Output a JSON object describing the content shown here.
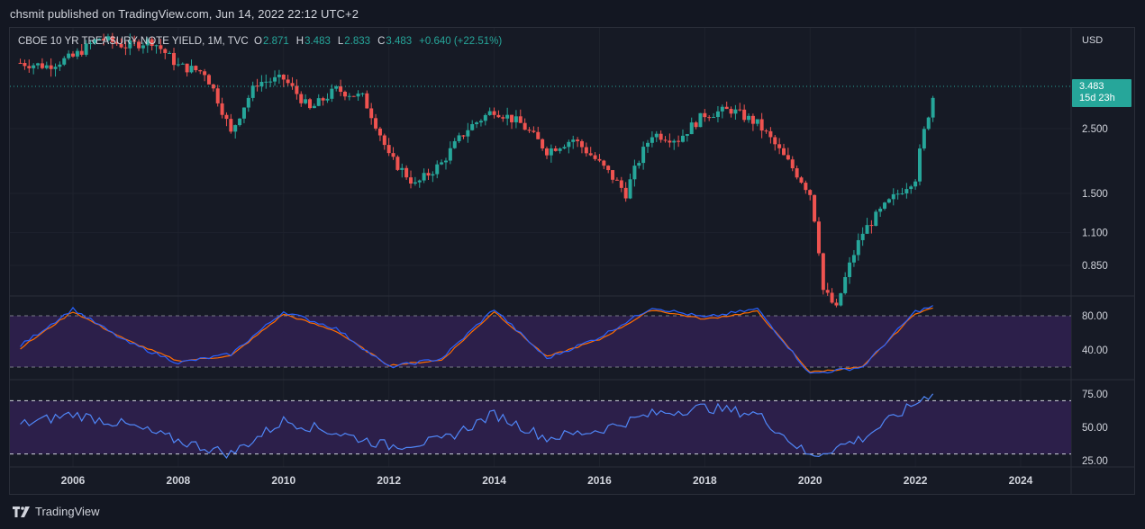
{
  "header": {
    "published_by": "chsmit published on TradingView.com, Jun 14, 2022 22:12 UTC+2"
  },
  "legend": {
    "symbol": "CBOE 10 YR TREASURY NOTE YIELD, 1M, TVC",
    "open_label": "O",
    "open": "2.871",
    "high_label": "H",
    "high": "3.483",
    "low_label": "L",
    "low": "2.833",
    "close_label": "C",
    "close": "3.483",
    "change": "+0.640 (+22.51%)"
  },
  "price_axis": {
    "currency": "USD",
    "labels": [
      "2.500",
      "1.500",
      "1.100",
      "0.850"
    ],
    "last_price": "3.483",
    "countdown": "15d 23h"
  },
  "stoch_axis": {
    "labels": [
      "80.00",
      "40.00"
    ]
  },
  "rsi_axis": {
    "labels": [
      "75.00",
      "50.00",
      "25.00"
    ]
  },
  "time_axis": {
    "labels": [
      "2006",
      "2008",
      "2010",
      "2012",
      "2014",
      "2016",
      "2018",
      "2020",
      "2022",
      "2024"
    ]
  },
  "footer": {
    "brand": "TradingView"
  },
  "colors": {
    "background": "#131722",
    "pane": "#161a25",
    "up": "#26a69a",
    "down": "#ef5350",
    "band_fill": "#2c1f4a",
    "blue_line": "#2962ff",
    "orange_line": "#ff6d00"
  },
  "chart_data": {
    "type": "candlestick",
    "price_series": {
      "name": "CBOE 10 YR TREASURY NOTE YIELD",
      "scale": "log",
      "x": [
        "2005",
        "2005.5",
        "2006",
        "2006.5",
        "2007",
        "2007.5",
        "2008",
        "2008.5",
        "2009",
        "2009.5",
        "2010",
        "2010.5",
        "2011",
        "2011.5",
        "2012",
        "2012.5",
        "2013",
        "2013.5",
        "2014",
        "2014.5",
        "2015",
        "2015.5",
        "2016",
        "2016.5",
        "2017",
        "2017.5",
        "2018",
        "2018.5",
        "2019",
        "2019.5",
        "2020",
        "2020.25",
        "2020.5",
        "2021",
        "2021.5",
        "2022",
        "2022.4"
      ],
      "y": [
        4.2,
        4.1,
        4.4,
        5.1,
        4.8,
        5.0,
        4.1,
        3.9,
        2.4,
        3.6,
        3.7,
        2.9,
        3.4,
        3.2,
        2.0,
        1.6,
        1.9,
        2.5,
        2.9,
        2.6,
        2.1,
        2.3,
        1.9,
        1.5,
        2.4,
        2.3,
        2.8,
        2.9,
        2.6,
        2.0,
        1.5,
        0.7,
        0.6,
        1.1,
        1.4,
        1.7,
        3.483
      ]
    },
    "stochastic": {
      "bands": [
        20,
        80
      ],
      "x": [
        "2005",
        "2006",
        "2007",
        "2008",
        "2009",
        "2010",
        "2011",
        "2012",
        "2013",
        "2014",
        "2015",
        "2016",
        "2017",
        "2018",
        "2019",
        "2020",
        "2021",
        "2022",
        "2022.4"
      ],
      "k": [
        45,
        88,
        50,
        25,
        35,
        85,
        65,
        20,
        30,
        88,
        30,
        55,
        90,
        78,
        88,
        12,
        20,
        85,
        92
      ],
      "d": [
        42,
        85,
        52,
        27,
        33,
        82,
        62,
        22,
        28,
        85,
        32,
        52,
        87,
        76,
        85,
        14,
        20,
        83,
        90
      ]
    },
    "rsi": {
      "bands": [
        30,
        70
      ],
      "x": [
        "2005",
        "2006",
        "2007",
        "2008",
        "2009",
        "2010",
        "2011",
        "2012",
        "2013",
        "2014",
        "2015",
        "2016",
        "2017",
        "2018",
        "2019",
        "2020",
        "2021",
        "2022",
        "2022.4"
      ],
      "values": [
        52,
        60,
        52,
        40,
        30,
        55,
        46,
        36,
        40,
        60,
        42,
        48,
        60,
        65,
        60,
        28,
        42,
        68,
        78
      ]
    }
  }
}
